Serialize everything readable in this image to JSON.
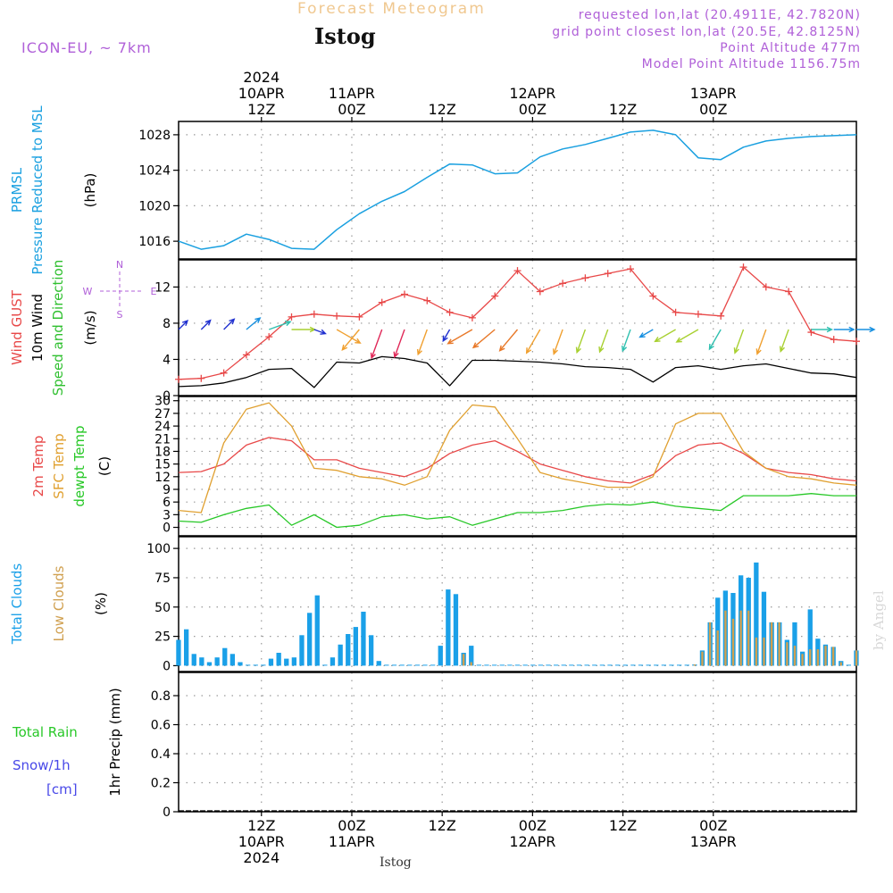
{
  "header": {
    "title": "Forecast Meteogram",
    "location": "Istog",
    "model": "ICON-EU, ~ 7km",
    "requested": "requested lon,lat (20.4911E, 42.7820N)",
    "grid_point": "grid point closest lon,lat (20.5E, 42.8125N)",
    "point_alt": "Point Altitude 477m",
    "model_alt": "Model Point Altitude 1156.75m"
  },
  "footer": {
    "location": "Istog",
    "credit": "by Angel"
  },
  "colors": {
    "pressure": "#1aa0e0",
    "gust": "#e84848",
    "wind": "#000000",
    "dirlabel": "#30c030",
    "temp2m": "#e84848",
    "sfctemp": "#e0a030",
    "dewpt": "#28c828",
    "total_clouds": "#1aa0e8",
    "low_clouds": "#d0a050",
    "total_rain": "#28c828",
    "snow": "#4848e8",
    "compass": "#b060d8"
  },
  "chart_data": [
    {
      "type": "line",
      "title": "PRMSL Pressure Reduced to MSL",
      "side_labels": [
        "PRMSL",
        "Pressure Reduced to MSL"
      ],
      "ylabel": "(hPa)",
      "ylim": [
        1014,
        1029.5
      ],
      "yticks": [
        1016,
        1020,
        1024,
        1028
      ],
      "x_hours": [
        0,
        3,
        6,
        9,
        12,
        15,
        18,
        21,
        24,
        27,
        30,
        33,
        36,
        39,
        42,
        45,
        48,
        51,
        54,
        57,
        60,
        63,
        66,
        69,
        72,
        75,
        78,
        81,
        84,
        87,
        90
      ],
      "series": [
        {
          "name": "PRMSL",
          "values": [
            1016.0,
            1015.1,
            1015.5,
            1016.8,
            1016.2,
            1015.2,
            1015.1,
            1017.3,
            1019.1,
            1020.5,
            1021.6,
            1023.2,
            1024.7,
            1024.6,
            1023.6,
            1023.7,
            1025.5,
            1026.4,
            1026.9,
            1027.6,
            1028.3,
            1028.5,
            1028.0,
            1025.4,
            1025.2,
            1026.6,
            1027.3,
            1027.6,
            1027.8,
            1027.9,
            1028.0
          ]
        }
      ]
    },
    {
      "type": "line",
      "title": "Wind GUST / 10m Wind Speed and Direction",
      "side_labels": [
        "Wind GUST",
        "10m Wind",
        "Speed and Direction"
      ],
      "ylabel": "(m/s)",
      "ylim": [
        0,
        15
      ],
      "yticks": [
        0,
        4,
        8,
        12
      ],
      "compass": {
        "n": "N",
        "e": "E",
        "s": "S",
        "w": "W"
      },
      "x_hours": [
        0,
        3,
        6,
        9,
        12,
        15,
        18,
        21,
        24,
        27,
        30,
        33,
        36,
        39,
        42,
        45,
        48,
        51,
        54,
        57,
        60,
        63,
        66,
        69,
        72,
        75,
        78,
        81,
        84,
        87,
        90
      ],
      "series": [
        {
          "name": "Wind GUST",
          "values": [
            1.8,
            1.9,
            2.5,
            4.5,
            6.5,
            8.7,
            9.0,
            8.8,
            8.7,
            10.3,
            11.2,
            10.5,
            9.2,
            8.6,
            11.0,
            13.8,
            11.5,
            12.4,
            13.0,
            13.5,
            14.0,
            11.0,
            9.2,
            9.0,
            8.8,
            14.2,
            12.0,
            11.5,
            7.0,
            6.2,
            6.0
          ]
        },
        {
          "name": "10m Wind",
          "values": [
            1.0,
            1.1,
            1.4,
            2.0,
            2.9,
            3.0,
            0.9,
            3.7,
            3.6,
            4.3,
            4.1,
            3.6,
            1.1,
            3.9,
            3.9,
            3.8,
            3.7,
            3.5,
            3.2,
            3.1,
            2.9,
            1.5,
            3.1,
            3.3,
            2.9,
            3.3,
            3.5,
            3.0,
            2.5,
            2.4,
            2.0
          ]
        }
      ],
      "direction_deg": [
        225,
        225,
        225,
        230,
        250,
        270,
        290,
        300,
        40,
        20,
        20,
        20,
        30,
        60,
        50,
        40,
        30,
        20,
        20,
        20,
        20,
        60,
        60,
        60,
        30,
        20,
        20,
        20,
        270,
        270,
        270
      ]
    },
    {
      "type": "line",
      "title": "2m Temp / SFC Temp / dewpt Temp",
      "side_labels": [
        "2m Temp",
        "SFC Temp",
        "dewpt Temp"
      ],
      "ylabel": "(C)",
      "ylim": [
        -2,
        31
      ],
      "yticks": [
        0,
        3,
        6,
        9,
        12,
        15,
        18,
        21,
        24,
        27,
        30
      ],
      "x_hours": [
        0,
        3,
        6,
        9,
        12,
        15,
        18,
        21,
        24,
        27,
        30,
        33,
        36,
        39,
        42,
        45,
        48,
        51,
        54,
        57,
        60,
        63,
        66,
        69,
        72,
        75,
        78,
        81,
        84,
        87,
        90
      ],
      "series": [
        {
          "name": "2m Temp",
          "values": [
            13.0,
            13.2,
            15.0,
            19.5,
            21.3,
            20.5,
            16.0,
            16.0,
            14.0,
            13.0,
            12.0,
            14.0,
            17.5,
            19.5,
            20.5,
            18.0,
            15.0,
            13.5,
            12.0,
            11.0,
            10.5,
            12.5,
            17.0,
            19.5,
            20.0,
            17.5,
            14.0,
            13.0,
            12.5,
            11.5,
            11.0
          ]
        },
        {
          "name": "SFC Temp",
          "values": [
            4.0,
            3.5,
            20.0,
            28.0,
            29.5,
            24.0,
            14.0,
            13.5,
            12.0,
            11.5,
            10.0,
            12.0,
            23.0,
            29.0,
            28.5,
            21.0,
            13.0,
            11.5,
            10.5,
            9.5,
            9.5,
            12.0,
            24.5,
            27.0,
            27.0,
            18.0,
            14.0,
            12.0,
            11.5,
            10.5,
            10.0
          ]
        },
        {
          "name": "dewpt Temp",
          "values": [
            1.5,
            1.2,
            3.0,
            4.5,
            5.3,
            0.5,
            3.0,
            0.0,
            0.5,
            2.5,
            3.0,
            2.0,
            2.5,
            0.5,
            2.0,
            3.5,
            3.5,
            4.0,
            5.0,
            5.5,
            5.3,
            6.0,
            5.0,
            4.5,
            4.0,
            7.5,
            7.5,
            7.5,
            8.0,
            7.5,
            7.5
          ]
        }
      ]
    },
    {
      "type": "bar",
      "title": "Total Clouds / Low Clouds",
      "side_labels": [
        "Total Clouds",
        "Low Clouds"
      ],
      "ylabel": "(%)",
      "ylim": [
        -5,
        110
      ],
      "yticks": [
        0,
        25,
        50,
        75,
        100
      ],
      "series": [
        {
          "name": "Total Clouds",
          "values": [
            22,
            31,
            10,
            7,
            3,
            7,
            15,
            10,
            3,
            0,
            0,
            0,
            6,
            11,
            6,
            7,
            26,
            45,
            60,
            0,
            7,
            18,
            27,
            33,
            46,
            26,
            4,
            0,
            0,
            0,
            0,
            0,
            0,
            0,
            17,
            65,
            61,
            11,
            17,
            0,
            0,
            0,
            0,
            0,
            0,
            0,
            0,
            0,
            0,
            0,
            0,
            0,
            0,
            0,
            0,
            0,
            0,
            0,
            0,
            0,
            0,
            0,
            0,
            0,
            0,
            0,
            0,
            1,
            13,
            37,
            58,
            64,
            62,
            77,
            75,
            88,
            63,
            37,
            37,
            22,
            37,
            12,
            48,
            23,
            18,
            16,
            4,
            0,
            13
          ]
        },
        {
          "name": "Low Clouds",
          "values": [
            0,
            0,
            0,
            0,
            0,
            0,
            0,
            0,
            0,
            0,
            0,
            0,
            0,
            0,
            0,
            0,
            0,
            0,
            0,
            0,
            0,
            0,
            0,
            0,
            0,
            0,
            0,
            0,
            0,
            0,
            0,
            0,
            0,
            0,
            0,
            0,
            0,
            10,
            3,
            0,
            0,
            0,
            0,
            0,
            0,
            0,
            0,
            0,
            0,
            0,
            0,
            0,
            0,
            0,
            0,
            0,
            0,
            0,
            0,
            0,
            0,
            0,
            0,
            0,
            0,
            0,
            0,
            1,
            12,
            37,
            30,
            47,
            40,
            47,
            47,
            24,
            24,
            37,
            37,
            20,
            17,
            10,
            14,
            14,
            17,
            16,
            3,
            0,
            13
          ]
        }
      ]
    },
    {
      "type": "bar",
      "title": "Total Rain / Snow/1h",
      "side_labels": [
        "Total Rain",
        "Snow/1h",
        "[cm]"
      ],
      "ylabel": "1hr Precip (mm)",
      "ylim": [
        0,
        0.96
      ],
      "yticks": [
        0,
        0.2,
        0.4,
        0.6,
        0.8
      ],
      "series": [
        {
          "name": "Total Rain",
          "values": []
        },
        {
          "name": "Snow/1h",
          "values": []
        }
      ]
    }
  ],
  "time_axis": {
    "hours_span": [
      0,
      90
    ],
    "major_ticks": [
      {
        "h": 11,
        "top": [
          "2024",
          "10APR",
          "12Z"
        ],
        "bottom": [
          "12Z",
          "10APR",
          "2024"
        ]
      },
      {
        "h": 23,
        "top": [
          "11APR",
          "00Z"
        ],
        "bottom": [
          "00Z",
          "11APR"
        ]
      },
      {
        "h": 35,
        "top": [
          "12Z"
        ],
        "bottom": [
          "12Z"
        ]
      },
      {
        "h": 47,
        "top": [
          "12APR",
          "00Z"
        ],
        "bottom": [
          "00Z",
          "12APR"
        ]
      },
      {
        "h": 59,
        "top": [
          "12Z"
        ],
        "bottom": [
          "12Z"
        ]
      },
      {
        "h": 71,
        "top": [
          "13APR",
          "00Z"
        ],
        "bottom": [
          "00Z",
          "13APR"
        ]
      }
    ]
  }
}
